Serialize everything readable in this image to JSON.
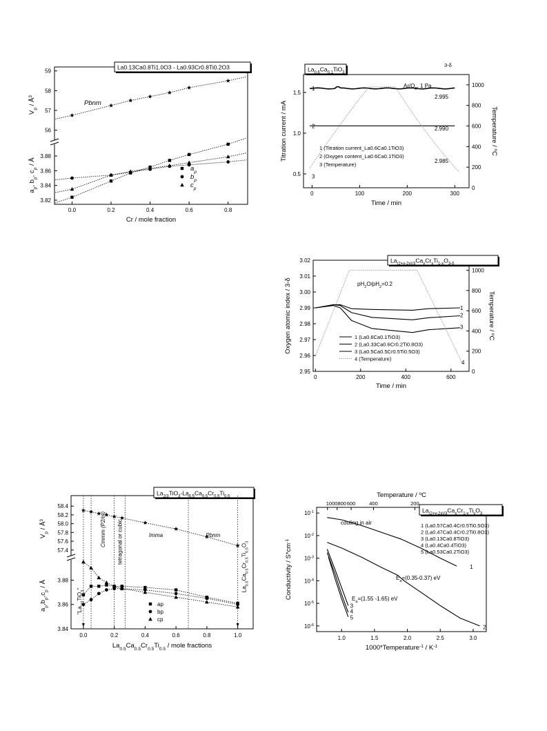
{
  "chart_data": [
    {
      "id": "c1",
      "type": "scatter",
      "title": "La0.13Ca0.8Ti1.0O3 - La0.93Cr0.8Ti0.2O3",
      "xlabel": "Cr / mole fraction",
      "ylabel_top": "V_p / Å³",
      "ylabel_bottom": "a_p, b_p, c_p / Å",
      "annotation": "Pbnm",
      "xticks": [
        "0.0",
        "0.2",
        "0.4",
        "0.6",
        "0.8"
      ],
      "yticks_top": [
        "56",
        "57",
        "58",
        "59"
      ],
      "yticks_bottom": [
        "3.82",
        "3.84",
        "3.86",
        "3.88"
      ],
      "xlim": [
        -0.09,
        0.9
      ],
      "ylim_top": [
        55.6,
        59.2
      ],
      "ylim_bottom": [
        3.82,
        3.895
      ],
      "legend": [
        "a_p",
        "b_p",
        "c_p"
      ],
      "series": [
        {
          "name": "V_p",
          "marker": "star",
          "x": [
            0.0,
            0.2,
            0.3,
            0.4,
            0.5,
            0.6,
            0.8
          ],
          "y": [
            56.75,
            57.25,
            57.5,
            57.7,
            57.9,
            58.15,
            58.5
          ]
        },
        {
          "name": "a_p",
          "marker": "square",
          "x": [
            0.0,
            0.2,
            0.3,
            0.4,
            0.5,
            0.6,
            0.8
          ],
          "y": [
            3.824,
            3.846,
            3.857,
            3.865,
            3.874,
            3.882,
            3.896
          ]
        },
        {
          "name": "b_p",
          "marker": "circle",
          "x": [
            0.0,
            0.2,
            0.3,
            0.4,
            0.5,
            0.6,
            0.8
          ],
          "y": [
            3.85,
            3.854,
            3.858,
            3.862,
            3.866,
            3.868,
            3.872
          ]
        },
        {
          "name": "c_p",
          "marker": "triangle",
          "x": [
            0.0,
            0.2,
            0.3,
            0.4,
            0.5,
            0.6,
            0.8
          ],
          "y": [
            3.835,
            3.854,
            3.859,
            3.863,
            3.867,
            3.871,
            3.879
          ]
        }
      ]
    },
    {
      "id": "c2",
      "type": "line",
      "title": "La0.6Ca0.1TiO3",
      "right_top_label": "3-δ",
      "annotation": "Ar/O2, 1 Pa",
      "xlabel": "Time / min",
      "ylabel": "Titration current / mA",
      "ylabel_right": "Temperature / °C",
      "xticks": [
        "0",
        "100",
        "200",
        "300"
      ],
      "yticks": [
        "0.5",
        "1.0",
        "1.5"
      ],
      "yticks_right": [
        "0",
        "200",
        "400",
        "600",
        "800",
        "1000"
      ],
      "right_value_labels": [
        "2.995",
        "2.990",
        "2.985"
      ],
      "xlim": [
        -18,
        330
      ],
      "ylim": [
        0.33,
        1.72
      ],
      "ylim_right": [
        0,
        1100
      ],
      "legend": [
        "1 (Titration current_La0.6Ca0.1TiO3)",
        "2 (Oxygen content_La0.6Ca0.1TiO3)",
        "3 (Temperature)"
      ],
      "series": [
        {
          "name": "1",
          "x": [
            0,
            50,
            55,
            60,
            100,
            150,
            200,
            250,
            300
          ],
          "y": [
            1.55,
            1.55,
            1.57,
            1.55,
            1.55,
            1.55,
            1.55,
            1.55,
            1.55
          ]
        },
        {
          "name": "2",
          "x": [
            0,
            300
          ],
          "y": [
            1.09,
            1.09
          ]
        },
        {
          "name": "3",
          "axis": "right",
          "x": [
            -5,
            120,
            175,
            310
          ],
          "y": [
            190,
            980,
            980,
            150
          ]
        }
      ],
      "curve_labels": [
        "1",
        "2",
        "3"
      ]
    },
    {
      "id": "c3",
      "type": "line",
      "title": "La(2+x-2y)/3CayCrxTi1-xO3-δ",
      "annotation": "pH2O/pH2=0.2",
      "xlabel": "Time / min",
      "ylabel": "Oxygen atomic index / 3-δ",
      "ylabel_right": "Temperature / °C",
      "xticks": [
        "0",
        "200",
        "400",
        "600"
      ],
      "yticks": [
        "2.95",
        "2.96",
        "2.97",
        "2.98",
        "2.99",
        "3.00",
        "3.01",
        "3.02"
      ],
      "yticks_right": [
        "0",
        "200",
        "400",
        "600",
        "800",
        "1000"
      ],
      "xlim": [
        -10,
        680
      ],
      "ylim": [
        2.95,
        3.02
      ],
      "ylim_right": [
        0,
        1100
      ],
      "legend": [
        "1 (La0.6Ca0.1TiO3)",
        "2 (La0.33Ca0.6Cr0.2Ti0.8O3)",
        "3 (La0.5Ca0.5Cr0.5Ti0.5O3)",
        "4 (Temperature)"
      ],
      "series": [
        {
          "name": "1",
          "x": [
            0,
            80,
            110,
            160,
            250,
            430,
            500,
            640
          ],
          "y": [
            2.99,
            2.992,
            2.992,
            2.9895,
            2.989,
            2.9885,
            2.9895,
            2.99
          ]
        },
        {
          "name": "2",
          "x": [
            0,
            80,
            110,
            160,
            250,
            430,
            500,
            640
          ],
          "y": [
            2.99,
            2.992,
            2.9915,
            2.987,
            2.984,
            2.9825,
            2.9838,
            2.985
          ]
        },
        {
          "name": "3",
          "x": [
            0,
            80,
            110,
            160,
            250,
            430,
            500,
            640
          ],
          "y": [
            2.99,
            2.9915,
            2.99,
            2.982,
            2.977,
            2.9745,
            2.9762,
            2.9775
          ]
        },
        {
          "name": "4",
          "axis": "right",
          "x": [
            0,
            150,
            450,
            650
          ],
          "y": [
            150,
            1000,
            1000,
            80
          ]
        }
      ],
      "curve_labels": [
        "1",
        "2",
        "3",
        "4"
      ]
    },
    {
      "id": "c4",
      "type": "scatter",
      "title": "La2/3TiO3-La0.5Ca0.5Cr0.5Ti0.5",
      "xlabel": "La0.5Ca0.5Cr0.5Ti0.5 / mole fractions",
      "ylabel_top": "V_p / Å³",
      "ylabel_bottom": "a_p, b_p, c_p / Å",
      "phase_labels": [
        "Cmmm (P2/m)",
        "tetragonal or cubic",
        "Imma",
        "Pbnm"
      ],
      "end_labels": [
        "\"La2/3TiO3\"",
        "La0.5Ca0.5Cr0.5Ti0.5O3"
      ],
      "xticks": [
        "0.0",
        "0.2",
        "0.4",
        "0.6",
        "0.8",
        "1.0"
      ],
      "yticks_top": [
        "57.4",
        "57.6",
        "57.8",
        "58.0",
        "58.2",
        "58.4"
      ],
      "yticks_bottom": [
        "3.84",
        "3.86",
        "3.88"
      ],
      "xlim": [
        -0.08,
        1.1
      ],
      "ylim_top": [
        57.35,
        58.45
      ],
      "ylim_bottom": [
        3.84,
        3.895
      ],
      "legend": [
        "ap",
        "bp",
        "cp"
      ],
      "series": [
        {
          "name": "V_p",
          "marker": "star",
          "x": [
            0.0,
            0.05,
            0.1,
            0.15,
            0.2,
            0.25,
            0.4,
            0.6,
            0.8,
            1.0
          ],
          "y": [
            58.3,
            58.27,
            58.23,
            58.2,
            58.16,
            58.13,
            58.02,
            57.88,
            57.7,
            57.5
          ]
        },
        {
          "name": "ap",
          "marker": "square",
          "x": [
            0.0,
            0.05,
            0.1,
            0.15,
            0.2,
            0.25,
            0.4,
            0.6,
            0.8,
            1.0
          ],
          "y": [
            3.868,
            3.875,
            3.875,
            3.876,
            3.875,
            3.875,
            3.874,
            3.872,
            3.866,
            3.861
          ]
        },
        {
          "name": "bp",
          "marker": "circle",
          "x": [
            0.0,
            0.05,
            0.1,
            0.15,
            0.2,
            0.25,
            0.4,
            0.6,
            0.8,
            1.0
          ],
          "y": [
            3.86,
            3.864,
            3.869,
            3.872,
            3.873,
            3.873,
            3.872,
            3.869,
            3.865,
            3.86
          ]
        },
        {
          "name": "cp",
          "marker": "triangle",
          "x": [
            0.0,
            0.05,
            0.1,
            0.15,
            0.2,
            0.25,
            0.4,
            0.6,
            0.8,
            1.0
          ],
          "y": [
            3.895,
            3.89,
            3.882,
            3.878,
            3.875,
            3.873,
            3.87,
            3.866,
            3.862,
            3.858
          ]
        }
      ]
    },
    {
      "id": "c5",
      "type": "line",
      "title": "La(2+y-2x)/3CaxCr1-yTiyO3",
      "annotation": "cooling in air",
      "xlabel": "1000*Temperature⁻¹ / K⁻¹",
      "xlabel_top": "Temperature / °C",
      "ylabel": "Conductivity / S*cm⁻¹",
      "ea_labels": [
        "Ea=(0.35-0.37) eV",
        "Ea=(1.55 -1.65) eV"
      ],
      "xticks": [
        "1.0",
        "1.5",
        "2.0",
        "2.5",
        "3.0"
      ],
      "xticks_top": [
        "1000",
        "800",
        "600",
        "400",
        "200"
      ],
      "yticks": [
        "10⁻⁶",
        "10⁻⁵",
        "10⁻⁴",
        "10⁻³",
        "10⁻²",
        "10⁻¹"
      ],
      "xlim": [
        0.62,
        3.2
      ],
      "ylim_log": [
        -6.25,
        -0.75
      ],
      "legend": [
        "1 (La0.57Ca0.4Cr0.5Ti0.5O3)",
        "2 (La0.47Ca0.4Cr0.2Ti0.8O3)",
        "3 (La0.13Ca0.8TiO3)",
        "4 (La0.4Ca0.4TiO3)",
        "5 (La0.53Ca0.2TiO3)"
      ],
      "series": [
        {
          "name": "1",
          "x": [
            0.78,
            1.0,
            1.3,
            1.6,
            1.9,
            2.2,
            2.5,
            2.75
          ],
          "y": [
            -1.2,
            -1.3,
            -1.55,
            -1.85,
            -2.15,
            -2.55,
            -3.0,
            -3.35
          ]
        },
        {
          "name": "2",
          "x": [
            0.78,
            1.0,
            1.3,
            1.6,
            1.85,
            1.95,
            2.2,
            2.5,
            2.8,
            3.1
          ],
          "y": [
            -2.3,
            -2.55,
            -2.95,
            -3.4,
            -3.75,
            -4.0,
            -4.5,
            -5.1,
            -5.65,
            -6.0
          ]
        },
        {
          "name": "3",
          "x": [
            0.78,
            0.9,
            1.0,
            1.1
          ],
          "y": [
            -2.6,
            -3.5,
            -4.3,
            -5.1
          ]
        },
        {
          "name": "4",
          "x": [
            0.78,
            0.9,
            1.0,
            1.1
          ],
          "y": [
            -2.75,
            -3.7,
            -4.6,
            -5.4
          ]
        },
        {
          "name": "5",
          "x": [
            0.8,
            0.9,
            1.0,
            1.1
          ],
          "y": [
            -2.95,
            -3.9,
            -4.8,
            -5.6
          ]
        }
      ],
      "curve_labels": [
        "1",
        "2",
        "3",
        "4",
        "5"
      ]
    }
  ]
}
